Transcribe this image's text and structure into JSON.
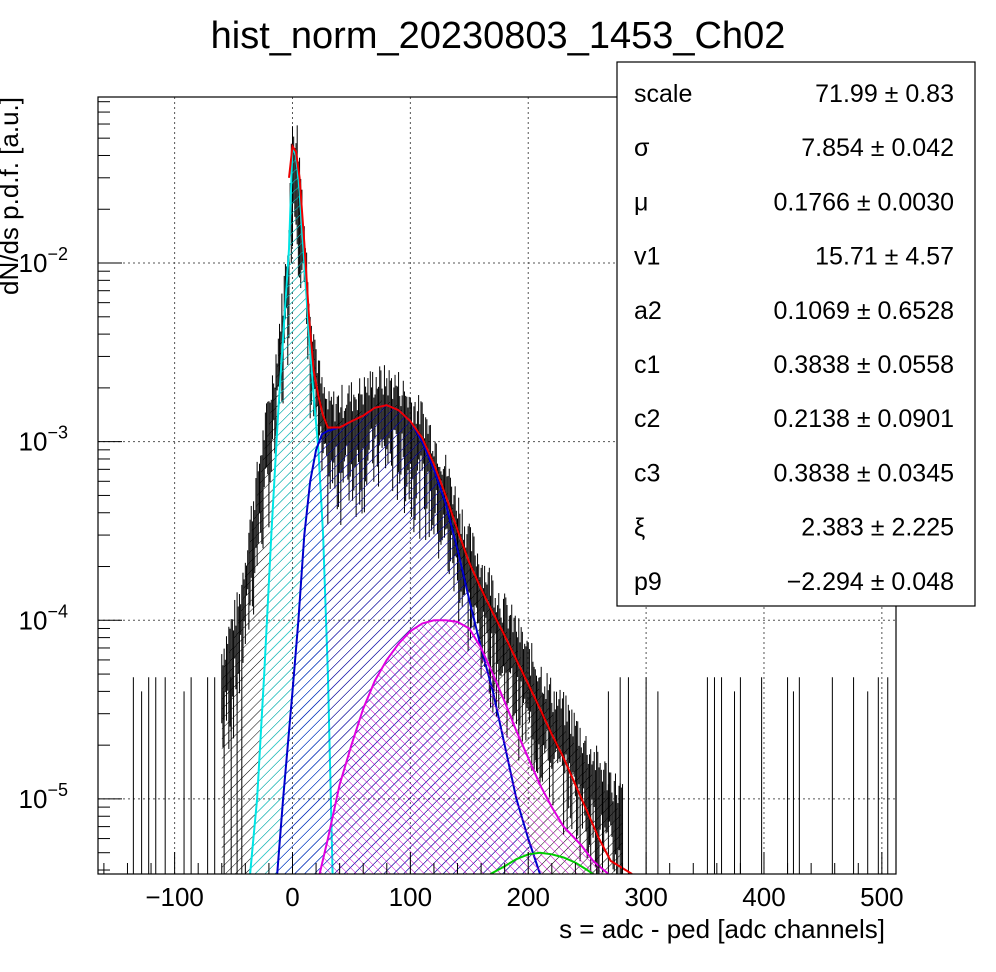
{
  "chart_data": {
    "type": "histogram-fit",
    "title": "hist_norm_20230803_1453_Ch02",
    "xlabel": "s = adc - ped [adc channels]",
    "ylabel": "dN/ds p.d.f. [a.u.]",
    "xlim": [
      -165,
      512
    ],
    "ylim": [
      3.8e-06,
      0.085
    ],
    "yscale": "log",
    "grid": true,
    "x_ticks": [
      -100,
      0,
      100,
      200,
      300,
      400,
      500
    ],
    "x_tick_labels": [
      "−100",
      "0",
      "100",
      "200",
      "300",
      "400",
      "500"
    ],
    "y_ticks": [
      {
        "value": 1e-05,
        "base": "10",
        "exp": "−5"
      },
      {
        "value": 0.0001,
        "base": "10",
        "exp": "−4"
      },
      {
        "value": 0.001,
        "base": "10",
        "exp": "−3"
      },
      {
        "value": 0.01,
        "base": "10",
        "exp": "−2"
      }
    ],
    "stats_box": [
      {
        "name": "scale",
        "value": "71.99",
        "error": "0.83"
      },
      {
        "name": "σ",
        "value": "7.854",
        "error": "0.042"
      },
      {
        "name": "μ",
        "value": "0.1766",
        "error": "0.0030"
      },
      {
        "name": "v1",
        "value": "15.71",
        "error": "4.57"
      },
      {
        "name": "a2",
        "value": "0.1069",
        "error": "0.6528"
      },
      {
        "name": "c1",
        "value": "0.3838",
        "error": "0.0558"
      },
      {
        "name": "c2",
        "value": "0.2138",
        "error": "0.0901"
      },
      {
        "name": "c3",
        "value": "0.3838",
        "error": "0.0345"
      },
      {
        "name": "ξ",
        "value": "2.383",
        "error": "2.225"
      },
      {
        "name": "p9",
        "value": "−2.294",
        "error": "0.048"
      }
    ],
    "components": [
      {
        "color": "#00e5e5",
        "hatch": true,
        "points": [
          [
            -36,
            3.8e-06
          ],
          [
            -30,
            1e-05
          ],
          [
            -24,
            5e-05
          ],
          [
            -18,
            0.0003
          ],
          [
            -12,
            0.0015
          ],
          [
            -6,
            0.006
          ],
          [
            -3,
            0.012
          ],
          [
            0,
            0.045
          ],
          [
            3,
            0.04
          ],
          [
            6,
            0.025
          ],
          [
            10,
            0.01
          ],
          [
            14,
            0.004
          ],
          [
            18,
            0.0018
          ],
          [
            22,
            0.0009
          ],
          [
            26,
            0.0003
          ],
          [
            30,
            5e-05
          ],
          [
            34,
            3.8e-06
          ]
        ]
      },
      {
        "color": "#0000cc",
        "hatch": true,
        "points": [
          [
            -13,
            3.8e-06
          ],
          [
            -8,
            1e-05
          ],
          [
            0,
            4e-05
          ],
          [
            5,
            0.0001
          ],
          [
            10,
            0.0003
          ],
          [
            15,
            0.0006
          ],
          [
            20,
            0.0009
          ],
          [
            25,
            0.0011
          ],
          [
            30,
            0.00115
          ],
          [
            40,
            0.0012
          ],
          [
            50,
            0.0013
          ],
          [
            60,
            0.0014
          ],
          [
            70,
            0.00155
          ],
          [
            80,
            0.0016
          ],
          [
            90,
            0.0015
          ],
          [
            100,
            0.0013
          ],
          [
            110,
            0.001
          ],
          [
            120,
            0.0007
          ],
          [
            130,
            0.00045
          ],
          [
            140,
            0.00025
          ],
          [
            150,
            0.00013
          ],
          [
            160,
            7e-05
          ],
          [
            170,
            4e-05
          ],
          [
            180,
            2e-05
          ],
          [
            190,
            1e-05
          ],
          [
            200,
            6e-06
          ],
          [
            210,
            3.8e-06
          ]
        ]
      },
      {
        "color": "#e000e0",
        "hatch": true,
        "points": [
          [
            23,
            3.8e-06
          ],
          [
            30,
            6e-06
          ],
          [
            40,
            1.2e-05
          ],
          [
            50,
            2e-05
          ],
          [
            60,
            3.2e-05
          ],
          [
            70,
            4.6e-05
          ],
          [
            80,
            6e-05
          ],
          [
            90,
            7.4e-05
          ],
          [
            100,
            8.7e-05
          ],
          [
            110,
            9.6e-05
          ],
          [
            120,
            0.0001
          ],
          [
            130,
            0.0001
          ],
          [
            140,
            9.8e-05
          ],
          [
            150,
            9e-05
          ],
          [
            160,
            7e-05
          ],
          [
            170,
            5e-05
          ],
          [
            180,
            3.5e-05
          ],
          [
            190,
            2.4e-05
          ],
          [
            200,
            1.7e-05
          ],
          [
            210,
            1.2e-05
          ],
          [
            220,
            9e-06
          ],
          [
            230,
            7e-06
          ],
          [
            245,
            5.5e-06
          ],
          [
            255,
            4.5e-06
          ],
          [
            268,
            3.8e-06
          ]
        ]
      },
      {
        "color": "#00cc00",
        "hatch": false,
        "points": [
          [
            168,
            3.8e-06
          ],
          [
            180,
            4.2e-06
          ],
          [
            190,
            4.6e-06
          ],
          [
            200,
            4.9e-06
          ],
          [
            210,
            5e-06
          ],
          [
            220,
            4.9e-06
          ],
          [
            230,
            4.7e-06
          ],
          [
            240,
            4.4e-06
          ],
          [
            250,
            4e-06
          ],
          [
            255,
            3.8e-06
          ]
        ]
      }
    ],
    "total_fit": {
      "color": "#ee0000",
      "points": [
        [
          -3,
          0.03
        ],
        [
          0,
          0.045
        ],
        [
          3,
          0.042
        ],
        [
          6,
          0.03
        ],
        [
          10,
          0.013
        ],
        [
          14,
          0.005
        ],
        [
          18,
          0.0025
        ],
        [
          22,
          0.0018
        ],
        [
          26,
          0.0014
        ],
        [
          30,
          0.0012
        ],
        [
          40,
          0.0012
        ],
        [
          50,
          0.0013
        ],
        [
          60,
          0.0014
        ],
        [
          70,
          0.00155
        ],
        [
          80,
          0.0016
        ],
        [
          90,
          0.0015
        ],
        [
          100,
          0.0013
        ],
        [
          110,
          0.00105
        ],
        [
          120,
          0.00075
        ],
        [
          130,
          0.0005
        ],
        [
          140,
          0.00032
        ],
        [
          150,
          0.00021
        ],
        [
          160,
          0.00015
        ],
        [
          170,
          0.00011
        ],
        [
          180,
          8.2e-05
        ],
        [
          190,
          6e-05
        ],
        [
          200,
          4.4e-05
        ],
        [
          210,
          3.2e-05
        ],
        [
          220,
          2.3e-05
        ],
        [
          230,
          1.7e-05
        ],
        [
          240,
          1.2e-05
        ],
        [
          250,
          8.5e-06
        ],
        [
          260,
          6e-06
        ],
        [
          270,
          4.5e-06
        ],
        [
          288,
          3.8e-06
        ]
      ]
    },
    "histogram_envelope": [
      [
        -60,
        5e-05
      ],
      [
        -45,
        0.0001
      ],
      [
        -35,
        0.0003
      ],
      [
        -25,
        0.0008
      ],
      [
        -15,
        0.002
      ],
      [
        -8,
        0.005
      ],
      [
        -4,
        0.01
      ],
      [
        0,
        0.045
      ],
      [
        4,
        0.04
      ],
      [
        8,
        0.02
      ],
      [
        12,
        0.008
      ],
      [
        16,
        0.004
      ],
      [
        20,
        0.0025
      ],
      [
        25,
        0.0015
      ],
      [
        30,
        0.0012
      ],
      [
        40,
        0.0013
      ],
      [
        50,
        0.0014
      ],
      [
        60,
        0.0015
      ],
      [
        70,
        0.0017
      ],
      [
        80,
        0.0017
      ],
      [
        90,
        0.0016
      ],
      [
        100,
        0.0013
      ],
      [
        110,
        0.0011
      ],
      [
        120,
        0.0008
      ],
      [
        130,
        0.00055
      ],
      [
        140,
        0.00035
      ],
      [
        150,
        0.00022
      ],
      [
        160,
        0.00016
      ],
      [
        170,
        0.00012
      ],
      [
        180,
        9e-05
      ],
      [
        190,
        7e-05
      ],
      [
        200,
        5e-05
      ],
      [
        210,
        4e-05
      ],
      [
        220,
        3e-05
      ],
      [
        230,
        2.5e-05
      ],
      [
        240,
        2e-05
      ],
      [
        250,
        1.5e-05
      ],
      [
        260,
        1.2e-05
      ],
      [
        270,
        1e-05
      ],
      [
        280,
        8e-06
      ]
    ],
    "sparse_bins": [
      -135,
      -128,
      -122,
      -116,
      -108,
      -92,
      -86,
      -72,
      -66,
      -58,
      -52,
      -47,
      -43,
      268,
      278,
      285,
      300,
      310,
      352,
      358,
      364,
      375,
      380,
      398,
      420,
      425,
      430,
      458,
      476,
      488,
      497,
      505
    ]
  }
}
